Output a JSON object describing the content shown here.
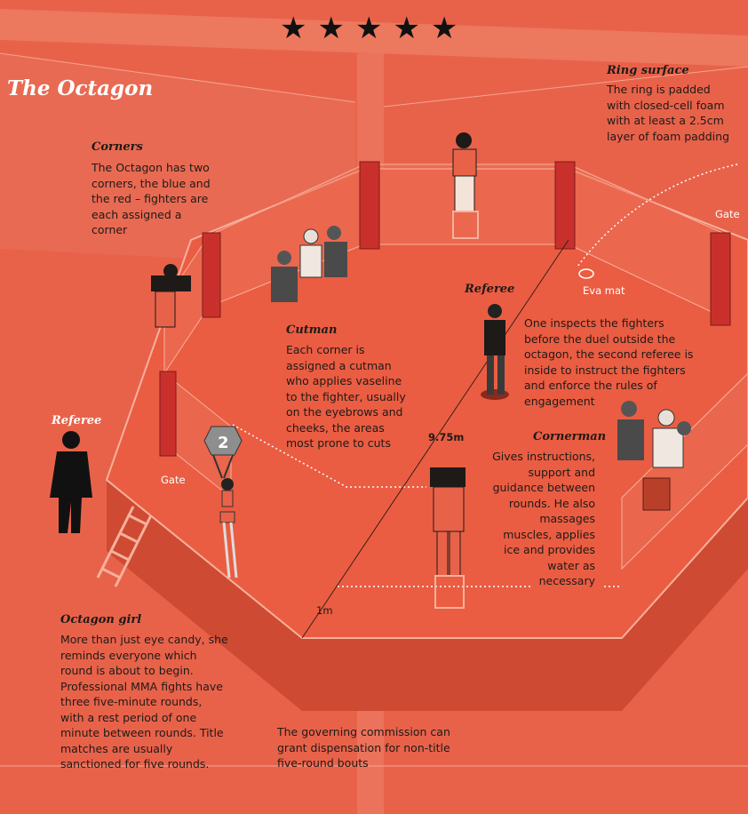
{
  "title": "The Octagon",
  "rating": {
    "stars": 5,
    "glyphs": "★★★★★"
  },
  "colors": {
    "background": "#e8624a",
    "mat": "#ea5d42",
    "fence_post": "#c9302c",
    "base": "#d04e36",
    "text": "#1e1a18"
  },
  "ring_surface": {
    "heading": "Ring surface",
    "lines": [
      "The ring is padded",
      "with closed-cell foam",
      "with at least a 2.5cm",
      "layer of foam padding"
    ]
  },
  "corners": {
    "heading": "Corners",
    "lines": [
      "The Octagon has two",
      "corners, the blue and",
      "the red – fighters are",
      "each assigned a",
      "corner"
    ]
  },
  "cutman": {
    "heading": "Cutman",
    "lines": [
      "Each corner is",
      "assigned a cutman",
      "who applies vaseline",
      "to the fighter, usually",
      "on the eyebrows and",
      "cheeks, the areas",
      "most prone to cuts"
    ]
  },
  "referee_inside": {
    "heading": "Referee",
    "lines": [
      "One inspects the fighters",
      "before the duel outside the",
      "octagon, the second referee is",
      "inside to instruct the fighters",
      "and enforce the rules of",
      "engagement"
    ]
  },
  "referee_outside": {
    "heading": "Referee"
  },
  "cornerman": {
    "heading": "Cornerman",
    "lines": [
      "Gives instructions,",
      "support and",
      "guidance between",
      "rounds. He also",
      "massages",
      "muscles, applies",
      "ice and provides",
      "water as",
      "necessary"
    ]
  },
  "octagon_girl": {
    "heading": "Octagon girl",
    "lines": [
      "More than just eye candy, she",
      "reminds everyone which",
      "round is about to begin.",
      "Professional MMA fights have",
      "three five-minute rounds,",
      "with a rest period of one",
      "minute between rounds. Title",
      "matches are usually",
      "sanctioned for five rounds."
    ],
    "round_card": "2"
  },
  "commission": {
    "lines": [
      "The governing commission can",
      "grant dispensation for non-title",
      "five-round bouts"
    ]
  },
  "labels": {
    "gate_right": "Gate",
    "gate_left": "Gate",
    "eva_mat": "Eva mat",
    "diameter": "9.75m",
    "height": "1m"
  }
}
